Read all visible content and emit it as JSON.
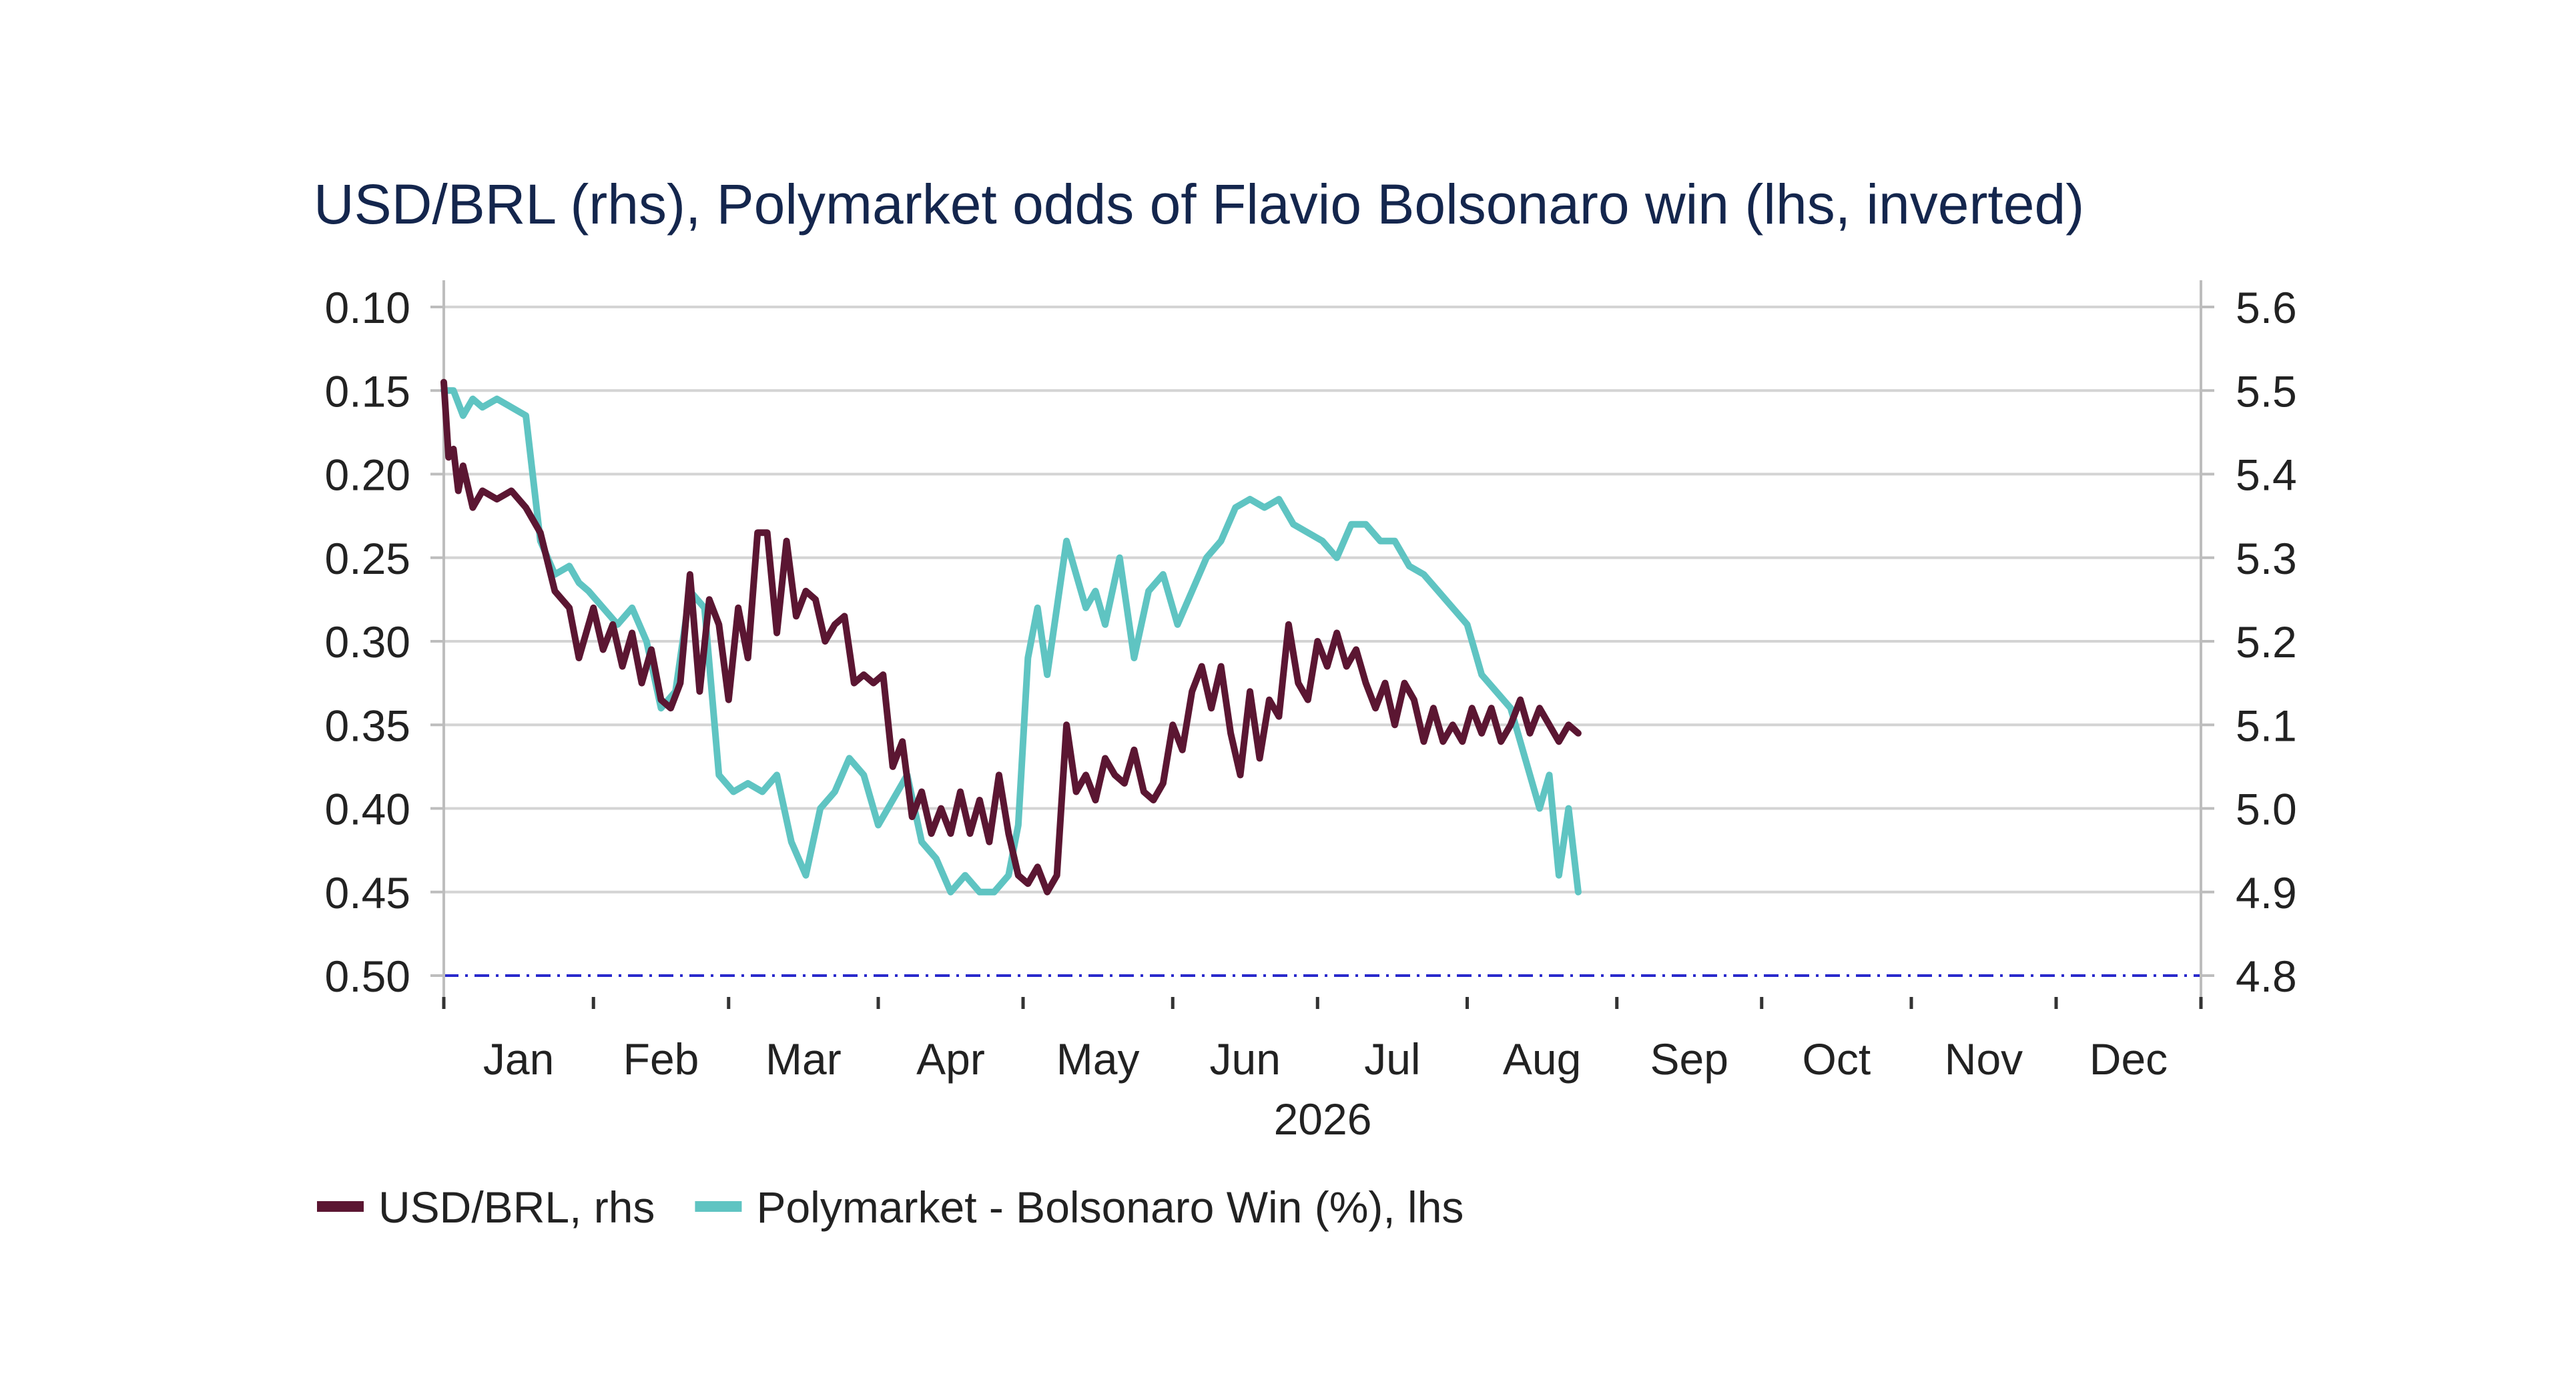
{
  "chart_data": {
    "type": "line",
    "title": "USD/BRL (rhs), Polymarket odds of Flavio Bolsonaro win (lhs, inverted)",
    "xlabel": "2026",
    "x_range": [
      "2026-01-01",
      "2026-12-31"
    ],
    "x_ticks": [
      {
        "date": "2026-01-01",
        "label": "Jan"
      },
      {
        "date": "2026-02-01",
        "label": "Feb"
      },
      {
        "date": "2026-03-01",
        "label": "Mar"
      },
      {
        "date": "2026-04-01",
        "label": "Apr"
      },
      {
        "date": "2026-05-01",
        "label": "May"
      },
      {
        "date": "2026-06-01",
        "label": "Jun"
      },
      {
        "date": "2026-07-01",
        "label": "Jul"
      },
      {
        "date": "2026-08-01",
        "label": "Aug"
      },
      {
        "date": "2026-09-01",
        "label": "Sep"
      },
      {
        "date": "2026-10-01",
        "label": "Oct"
      },
      {
        "date": "2026-11-01",
        "label": "Nov"
      },
      {
        "date": "2026-12-01",
        "label": "Dec"
      }
    ],
    "y_left": {
      "min": 0.1,
      "max": 0.5,
      "inverted": true,
      "ticks": [
        "0.10",
        "0.15",
        "0.20",
        "0.25",
        "0.30",
        "0.35",
        "0.40",
        "0.45",
        "0.50"
      ]
    },
    "y_right": {
      "min": 4.8,
      "max": 5.6,
      "inverted": false,
      "ticks": [
        "5.6",
        "5.5",
        "5.4",
        "5.3",
        "5.2",
        "5.1",
        "5.0",
        "4.9",
        "4.8"
      ]
    },
    "grid": true,
    "reference_line": {
      "axis": "left",
      "value": 0.5,
      "style": "dash-dot",
      "color": "#2a2acc"
    },
    "legend_position": "bottom-left",
    "series": [
      {
        "name": "USD/BRL, rhs",
        "axis": "right",
        "color": "#5b1632",
        "x": [
          "2026-01-01",
          "2026-01-02",
          "2026-01-03",
          "2026-01-04",
          "2026-01-05",
          "2026-01-07",
          "2026-01-09",
          "2026-01-12",
          "2026-01-15",
          "2026-01-18",
          "2026-01-21",
          "2026-01-24",
          "2026-01-27",
          "2026-01-29",
          "2026-02-01",
          "2026-02-03",
          "2026-02-05",
          "2026-02-07",
          "2026-02-09",
          "2026-02-11",
          "2026-02-13",
          "2026-02-15",
          "2026-02-17",
          "2026-02-19",
          "2026-02-21",
          "2026-02-23",
          "2026-02-25",
          "2026-02-27",
          "2026-03-01",
          "2026-03-03",
          "2026-03-05",
          "2026-03-07",
          "2026-03-09",
          "2026-03-11",
          "2026-03-13",
          "2026-03-15",
          "2026-03-17",
          "2026-03-19",
          "2026-03-21",
          "2026-03-23",
          "2026-03-25",
          "2026-03-27",
          "2026-03-29",
          "2026-03-31",
          "2026-04-02",
          "2026-04-04",
          "2026-04-06",
          "2026-04-08",
          "2026-04-10",
          "2026-04-12",
          "2026-04-14",
          "2026-04-16",
          "2026-04-18",
          "2026-04-20",
          "2026-04-22",
          "2026-04-24",
          "2026-04-26",
          "2026-04-28",
          "2026-04-30",
          "2026-05-02",
          "2026-05-04",
          "2026-05-06",
          "2026-05-08",
          "2026-05-10",
          "2026-05-12",
          "2026-05-14",
          "2026-05-16",
          "2026-05-18",
          "2026-05-20",
          "2026-05-22",
          "2026-05-24",
          "2026-05-26",
          "2026-05-28",
          "2026-05-30",
          "2026-06-01",
          "2026-06-03",
          "2026-06-05",
          "2026-06-07",
          "2026-06-09",
          "2026-06-11",
          "2026-06-13",
          "2026-06-15",
          "2026-06-17",
          "2026-06-19",
          "2026-06-21",
          "2026-06-23",
          "2026-06-25",
          "2026-06-27",
          "2026-06-29",
          "2026-07-01",
          "2026-07-03",
          "2026-07-05",
          "2026-07-07",
          "2026-07-09",
          "2026-07-11",
          "2026-07-13",
          "2026-07-15",
          "2026-07-17",
          "2026-07-19",
          "2026-07-21",
          "2026-07-23",
          "2026-07-25",
          "2026-07-27",
          "2026-07-29",
          "2026-07-31",
          "2026-08-02",
          "2026-08-04",
          "2026-08-06",
          "2026-08-08",
          "2026-08-10",
          "2026-08-12",
          "2026-08-14",
          "2026-08-16",
          "2026-08-18",
          "2026-08-20",
          "2026-08-22",
          "2026-08-24"
        ],
        "values": [
          5.51,
          5.42,
          5.43,
          5.38,
          5.41,
          5.36,
          5.38,
          5.37,
          5.38,
          5.36,
          5.33,
          5.26,
          5.24,
          5.18,
          5.24,
          5.19,
          5.22,
          5.17,
          5.21,
          5.15,
          5.19,
          5.13,
          5.12,
          5.15,
          5.28,
          5.14,
          5.25,
          5.22,
          5.13,
          5.24,
          5.18,
          5.33,
          5.33,
          5.21,
          5.32,
          5.23,
          5.26,
          5.25,
          5.2,
          5.22,
          5.23,
          5.15,
          5.16,
          5.15,
          5.16,
          5.05,
          5.08,
          4.99,
          5.02,
          4.97,
          5.0,
          4.97,
          5.02,
          4.97,
          5.01,
          4.96,
          5.04,
          4.97,
          4.92,
          4.91,
          4.93,
          4.9,
          4.92,
          5.1,
          5.02,
          5.04,
          5.01,
          5.06,
          5.04,
          5.03,
          5.07,
          5.02,
          5.01,
          5.03,
          5.1,
          5.07,
          5.14,
          5.17,
          5.12,
          5.17,
          5.09,
          5.04,
          5.14,
          5.06,
          5.13,
          5.11,
          5.22,
          5.15,
          5.13,
          5.2,
          5.17,
          5.21,
          5.17,
          5.19,
          5.15,
          5.12,
          5.15,
          5.1,
          5.15,
          5.13,
          5.08,
          5.12,
          5.08,
          5.1,
          5.08,
          5.12,
          5.09,
          5.12,
          5.08,
          5.1,
          5.13,
          5.09,
          5.12,
          5.1,
          5.08,
          5.1,
          5.09
        ]
      },
      {
        "name": "Polymarket - Bolsonaro Win (%), lhs",
        "axis": "left",
        "color": "#5fc4c2",
        "x": [
          "2026-01-01",
          "2026-01-03",
          "2026-01-05",
          "2026-01-07",
          "2026-01-09",
          "2026-01-12",
          "2026-01-15",
          "2026-01-18",
          "2026-01-21",
          "2026-01-24",
          "2026-01-27",
          "2026-01-29",
          "2026-01-31",
          "2026-02-03",
          "2026-02-06",
          "2026-02-09",
          "2026-02-12",
          "2026-02-15",
          "2026-02-18",
          "2026-02-21",
          "2026-02-24",
          "2026-02-27",
          "2026-03-02",
          "2026-03-05",
          "2026-03-08",
          "2026-03-11",
          "2026-03-14",
          "2026-03-17",
          "2026-03-20",
          "2026-03-23",
          "2026-03-26",
          "2026-03-29",
          "2026-04-01",
          "2026-04-04",
          "2026-04-07",
          "2026-04-10",
          "2026-04-13",
          "2026-04-16",
          "2026-04-19",
          "2026-04-22",
          "2026-04-25",
          "2026-04-28",
          "2026-04-30",
          "2026-05-02",
          "2026-05-04",
          "2026-05-06",
          "2026-05-08",
          "2026-05-10",
          "2026-05-12",
          "2026-05-14",
          "2026-05-16",
          "2026-05-18",
          "2026-05-21",
          "2026-05-24",
          "2026-05-27",
          "2026-05-30",
          "2026-06-02",
          "2026-06-05",
          "2026-06-08",
          "2026-06-11",
          "2026-06-14",
          "2026-06-17",
          "2026-06-20",
          "2026-06-23",
          "2026-06-26",
          "2026-06-29",
          "2026-07-02",
          "2026-07-05",
          "2026-07-08",
          "2026-07-11",
          "2026-07-14",
          "2026-07-17",
          "2026-07-20",
          "2026-07-23",
          "2026-07-26",
          "2026-07-29",
          "2026-08-01",
          "2026-08-04",
          "2026-08-07",
          "2026-08-10",
          "2026-08-13",
          "2026-08-16",
          "2026-08-18",
          "2026-08-20",
          "2026-08-22",
          "2026-08-24"
        ],
        "values": [
          0.15,
          0.15,
          0.165,
          0.155,
          0.16,
          0.155,
          0.16,
          0.165,
          0.24,
          0.26,
          0.255,
          0.265,
          0.27,
          0.28,
          0.29,
          0.28,
          0.3,
          0.34,
          0.33,
          0.27,
          0.28,
          0.38,
          0.39,
          0.385,
          0.39,
          0.38,
          0.42,
          0.44,
          0.4,
          0.39,
          0.37,
          0.38,
          0.41,
          0.395,
          0.38,
          0.42,
          0.43,
          0.45,
          0.44,
          0.45,
          0.45,
          0.44,
          0.41,
          0.31,
          0.28,
          0.32,
          0.28,
          0.24,
          0.26,
          0.28,
          0.27,
          0.29,
          0.25,
          0.31,
          0.27,
          0.26,
          0.29,
          0.27,
          0.25,
          0.24,
          0.22,
          0.215,
          0.22,
          0.215,
          0.23,
          0.235,
          0.24,
          0.25,
          0.23,
          0.23,
          0.24,
          0.24,
          0.255,
          0.26,
          0.27,
          0.28,
          0.29,
          0.32,
          0.33,
          0.34,
          0.37,
          0.4,
          0.38,
          0.44,
          0.4,
          0.45
        ]
      }
    ]
  }
}
